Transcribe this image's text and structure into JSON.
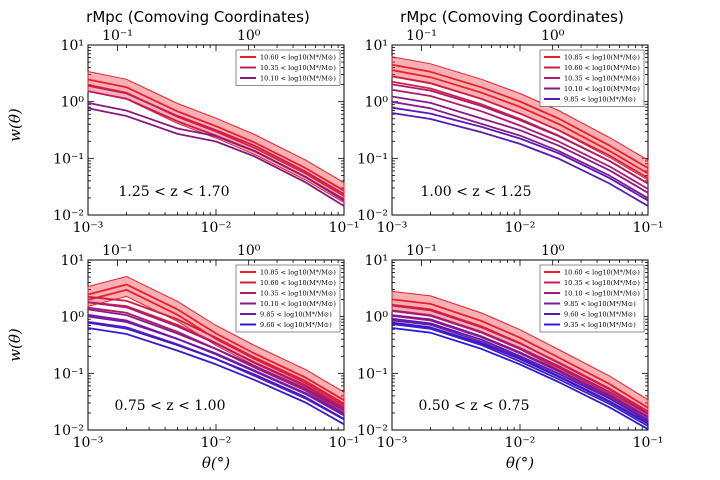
{
  "figure": {
    "top_axis_label": "rMpc (Comoving Coordinates)",
    "x_axis_label": "θ(°)",
    "y_axis_label": "w(θ)"
  },
  "chart_data": [
    {
      "type": "line",
      "panel": "top-left",
      "annotation": "1.25 < z < 1.70",
      "xlim": [
        0.001,
        0.1
      ],
      "ylim": [
        0.01,
        10
      ],
      "xscale": "log",
      "yscale": "log",
      "x_ticks": [
        "10^-3",
        "10^-2",
        "10^-1"
      ],
      "y_ticks": [
        "10^-2",
        "10^-1",
        "10^0",
        "10^1"
      ],
      "top_ticks": [
        "10^-1",
        "10^0"
      ],
      "top_tick_theta": [
        0.0017,
        0.018
      ],
      "legend_position": "top-right",
      "x": [
        0.001,
        0.002,
        0.005,
        0.01,
        0.02,
        0.05,
        0.1
      ],
      "series": [
        {
          "name": "10.60 < log10(M*/M⊙)",
          "color": "#e8202a",
          "band": true,
          "values": [
            2.2,
            1.6,
            0.6,
            0.33,
            0.17,
            0.06,
            0.024
          ]
        },
        {
          "name": "10.35 < log10(M*/M⊙)",
          "color": "#c21c5c",
          "band": false,
          "values": [
            1.7,
            1.25,
            0.5,
            0.28,
            0.15,
            0.052,
            0.021
          ]
        },
        {
          "name": "10.10 < log10(M*/M⊙)",
          "color": "#8a1a7e",
          "band": false,
          "values": [
            0.85,
            0.62,
            0.3,
            0.22,
            0.12,
            0.042,
            0.016
          ]
        }
      ]
    },
    {
      "type": "line",
      "panel": "top-right",
      "annotation": "1.00 < z < 1.25",
      "xlim": [
        0.001,
        0.1
      ],
      "ylim": [
        0.01,
        10
      ],
      "xscale": "log",
      "yscale": "log",
      "x_ticks": [
        "10^-3",
        "10^-2",
        "10^-1"
      ],
      "y_ticks": [
        "10^-2",
        "10^-1",
        "10^0",
        "10^1"
      ],
      "top_ticks": [
        "10^-1",
        "10^0"
      ],
      "top_tick_theta": [
        0.0017,
        0.018
      ],
      "legend_position": "top-right",
      "x": [
        0.001,
        0.002,
        0.005,
        0.01,
        0.02,
        0.05,
        0.1
      ],
      "series": [
        {
          "name": "10.85 < log10(M*/M⊙)",
          "color": "#e8202a",
          "band": true,
          "values": [
            4.0,
            3.0,
            1.6,
            0.9,
            0.45,
            0.15,
            0.06
          ]
        },
        {
          "name": "10.60 < log10(M*/M⊙)",
          "color": "#d01f46",
          "band": false,
          "values": [
            2.5,
            1.9,
            1.0,
            0.55,
            0.28,
            0.1,
            0.04
          ]
        },
        {
          "name": "10.35 < log10(M*/M⊙)",
          "color": "#b01c6c",
          "band": false,
          "values": [
            1.8,
            1.4,
            0.75,
            0.42,
            0.22,
            0.08,
            0.032
          ]
        },
        {
          "name": "10.10 < log10(M*/M⊙)",
          "color": "#8a1a8c",
          "band": false,
          "values": [
            1.1,
            0.85,
            0.45,
            0.28,
            0.15,
            0.055,
            0.022
          ]
        },
        {
          "name": "9.85 < log10(M*/M⊙)",
          "color": "#5a1ab6",
          "band": false,
          "values": [
            0.7,
            0.55,
            0.32,
            0.2,
            0.11,
            0.04,
            0.016
          ]
        }
      ]
    },
    {
      "type": "line",
      "panel": "bottom-left",
      "annotation": "0.75 < z < 1.00",
      "xlim": [
        0.001,
        0.1
      ],
      "ylim": [
        0.01,
        10
      ],
      "xscale": "log",
      "yscale": "log",
      "x_ticks": [
        "10^-3",
        "10^-2",
        "10^-1"
      ],
      "y_ticks": [
        "10^-2",
        "10^-1",
        "10^0",
        "10^1"
      ],
      "top_ticks": [
        "10^-1",
        "10^0"
      ],
      "top_tick_theta": [
        0.0017,
        0.018
      ],
      "legend_position": "top-right",
      "x": [
        0.001,
        0.002,
        0.005,
        0.01,
        0.02,
        0.05,
        0.1
      ],
      "series": [
        {
          "name": "10.85 < log10(M*/M⊙)",
          "color": "#e8202a",
          "band": true,
          "values": [
            2.2,
            3.3,
            1.2,
            0.45,
            0.2,
            0.075,
            0.03
          ]
        },
        {
          "name": "10.60 < log10(M*/M⊙)",
          "color": "#d01f46",
          "band": false,
          "values": [
            2.0,
            1.7,
            0.8,
            0.38,
            0.17,
            0.065,
            0.026
          ]
        },
        {
          "name": "10.35 < log10(M*/M⊙)",
          "color": "#b01c6c",
          "band": false,
          "values": [
            1.6,
            1.3,
            0.6,
            0.3,
            0.14,
            0.055,
            0.022
          ]
        },
        {
          "name": "10.10 < log10(M*/M⊙)",
          "color": "#8a1a8c",
          "band": false,
          "values": [
            1.2,
            0.95,
            0.45,
            0.24,
            0.12,
            0.048,
            0.02
          ]
        },
        {
          "name": "9.85 < log10(M*/M⊙)",
          "color": "#6a1ab0",
          "band": false,
          "values": [
            0.9,
            0.72,
            0.36,
            0.2,
            0.1,
            0.04,
            0.017
          ]
        },
        {
          "name": "9.60 < log10(M*/M⊙)",
          "color": "#3a1ad0",
          "band": false,
          "values": [
            0.7,
            0.55,
            0.28,
            0.16,
            0.085,
            0.034,
            0.014
          ]
        }
      ]
    },
    {
      "type": "line",
      "panel": "bottom-right",
      "annotation": "0.50 < z < 0.75",
      "xlim": [
        0.001,
        0.1
      ],
      "ylim": [
        0.01,
        10
      ],
      "xscale": "log",
      "yscale": "log",
      "x_ticks": [
        "10^-3",
        "10^-2",
        "10^-1"
      ],
      "y_ticks": [
        "10^-2",
        "10^-1",
        "10^0",
        "10^1"
      ],
      "top_ticks": [
        "10^-1",
        "10^0"
      ],
      "top_tick_theta": [
        0.0017,
        0.018
      ],
      "legend_position": "top-right",
      "x": [
        0.001,
        0.002,
        0.005,
        0.01,
        0.02,
        0.05,
        0.1
      ],
      "series": [
        {
          "name": "10.60 < log10(M*/M⊙)",
          "color": "#e8202a",
          "band": true,
          "values": [
            1.8,
            1.5,
            0.75,
            0.38,
            0.17,
            0.058,
            0.022
          ]
        },
        {
          "name": "10.35 < log10(M*/M⊙)",
          "color": "#c81e52",
          "band": false,
          "values": [
            1.4,
            1.15,
            0.58,
            0.3,
            0.14,
            0.048,
            0.019
          ]
        },
        {
          "name": "10.10 < log10(M*/M⊙)",
          "color": "#a41c78",
          "band": false,
          "values": [
            1.15,
            0.95,
            0.48,
            0.25,
            0.12,
            0.042,
            0.017
          ]
        },
        {
          "name": "9.85 < log10(M*/M⊙)",
          "color": "#7a1a98",
          "band": false,
          "values": [
            0.95,
            0.8,
            0.4,
            0.21,
            0.1,
            0.036,
            0.015
          ]
        },
        {
          "name": "9.60 < log10(M*/M⊙)",
          "color": "#501ab8",
          "band": false,
          "values": [
            0.82,
            0.68,
            0.35,
            0.18,
            0.088,
            0.032,
            0.013
          ]
        },
        {
          "name": "9.35 < log10(M*/M⊙)",
          "color": "#2a1ae0",
          "band": false,
          "values": [
            0.7,
            0.58,
            0.3,
            0.16,
            0.078,
            0.028,
            0.0115
          ]
        }
      ]
    }
  ]
}
